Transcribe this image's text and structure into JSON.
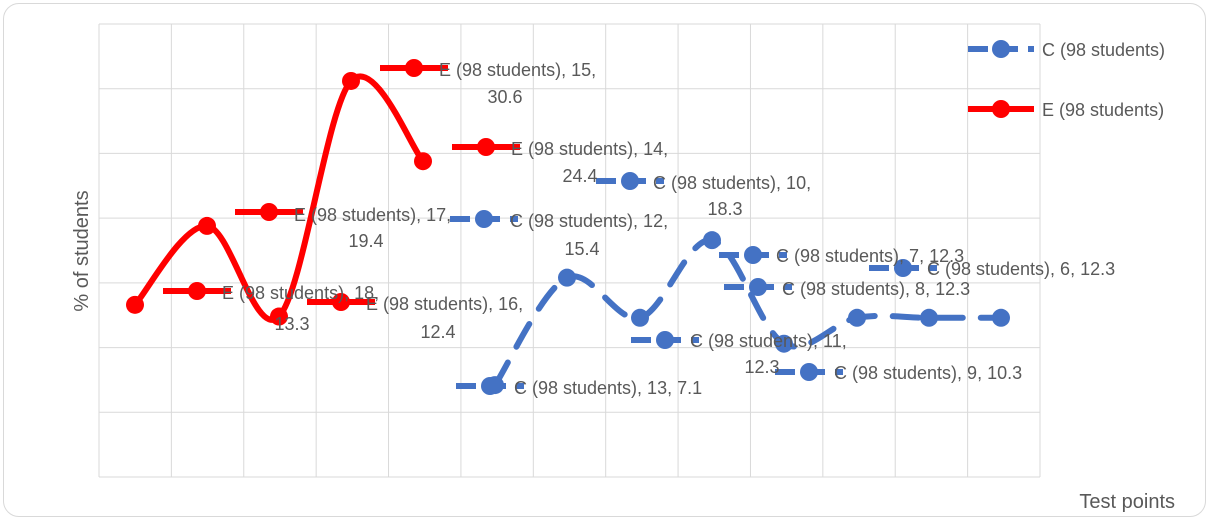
{
  "chart_data": {
    "type": "line",
    "xlabel": "Test points",
    "ylabel": "% of students",
    "ylim": [
      0,
      35
    ],
    "grid": true,
    "legend_position": "top-right",
    "colors": {
      "C": "#4472c4",
      "E": "#ff0000",
      "grid": "#d9d9d9",
      "text": "#595959"
    },
    "series": [
      {
        "name": "C (98 students)",
        "key": "C",
        "style": "dashed",
        "points": [
          {
            "x": 6,
            "y": 12.3,
            "label": "C (98 students), 6, 12.3"
          },
          {
            "x": 7,
            "y": 12.3,
            "label": "C (98 students), 7, 12.3"
          },
          {
            "x": 8,
            "y": 12.3,
            "label": "C (98 students), 8, 12.3"
          },
          {
            "x": 9,
            "y": 10.3,
            "label": "C (98 students), 9, 10.3"
          },
          {
            "x": 10,
            "y": 18.3,
            "label": "C (98 students), 10, 18.3"
          },
          {
            "x": 11,
            "y": 12.3,
            "label": "C (98 students), 11, 12.3"
          },
          {
            "x": 12,
            "y": 15.4,
            "label": "C (98 students), 12, 15.4"
          },
          {
            "x": 13,
            "y": 7.1,
            "label": "C (98 students), 13, 7.1"
          }
        ]
      },
      {
        "name": "E (98 students)",
        "key": "E",
        "style": "solid",
        "points": [
          {
            "x": 14,
            "y": 24.4,
            "label": "E (98 students), 14, 24.4"
          },
          {
            "x": 15,
            "y": 30.6,
            "label": "E (98 students), 15, 30.6"
          },
          {
            "x": 16,
            "y": 12.4,
            "label": "E (98 students), 16, 12.4"
          },
          {
            "x": 17,
            "y": 19.4,
            "label": "E (98 students), 17, 19.4"
          },
          {
            "x": 18,
            "y": 13.3,
            "label": "E (98 students), 18, 13.3"
          }
        ]
      }
    ]
  }
}
